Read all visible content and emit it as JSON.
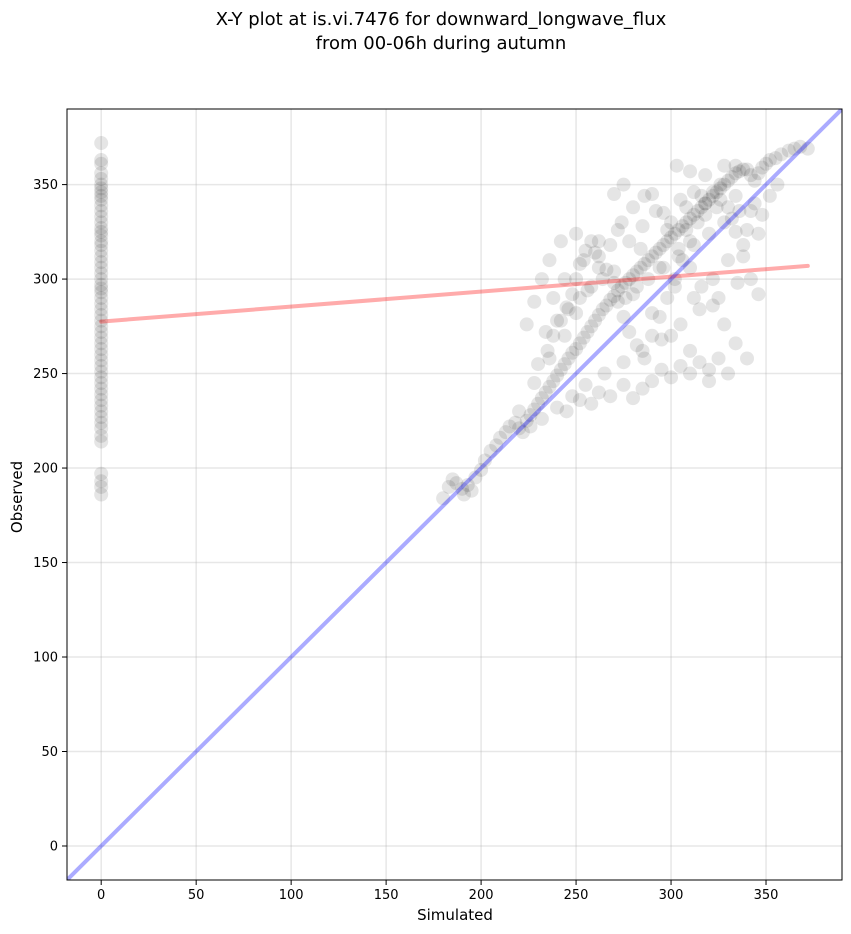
{
  "chart_data": {
    "type": "scatter",
    "title_line1": "X-Y plot at is.vi.7476 for downward_longwave_flux",
    "title_line2": "from 00-06h during autumn",
    "xlabel": "Simulated",
    "ylabel": "Observed",
    "xlim": [
      -18,
      390
    ],
    "ylim": [
      -18,
      390
    ],
    "xticks": [
      0,
      50,
      100,
      150,
      200,
      250,
      300,
      350
    ],
    "yticks": [
      0,
      50,
      100,
      150,
      200,
      250,
      300,
      350
    ],
    "grid": true,
    "legend": "none",
    "series": [
      {
        "marker_color": "#000000",
        "marker_opacity": 0.1,
        "points": [
          [
            0,
            372
          ],
          [
            0,
            363
          ],
          [
            0,
            361
          ],
          [
            0,
            356
          ],
          [
            0,
            353
          ],
          [
            0,
            350
          ],
          [
            0,
            348
          ],
          [
            0,
            346
          ],
          [
            0,
            344
          ],
          [
            0,
            342
          ],
          [
            0,
            339
          ],
          [
            0,
            336
          ],
          [
            0,
            333
          ],
          [
            0,
            330
          ],
          [
            0,
            327
          ],
          [
            0,
            325
          ],
          [
            0,
            323
          ],
          [
            0,
            320
          ],
          [
            0,
            318
          ],
          [
            0,
            315
          ],
          [
            0,
            312
          ],
          [
            0,
            309
          ],
          [
            0,
            306
          ],
          [
            0,
            303
          ],
          [
            0,
            300
          ],
          [
            0,
            297
          ],
          [
            0,
            295
          ],
          [
            0,
            293
          ],
          [
            0,
            290
          ],
          [
            0,
            287
          ],
          [
            0,
            284
          ],
          [
            0,
            281
          ],
          [
            0,
            278
          ],
          [
            0,
            275
          ],
          [
            0,
            272
          ],
          [
            0,
            269
          ],
          [
            0,
            266
          ],
          [
            0,
            263
          ],
          [
            0,
            260
          ],
          [
            0,
            257
          ],
          [
            0,
            254
          ],
          [
            0,
            251
          ],
          [
            0,
            248
          ],
          [
            0,
            245
          ],
          [
            0,
            242
          ],
          [
            0,
            239
          ],
          [
            0,
            236
          ],
          [
            0,
            233
          ],
          [
            0,
            230
          ],
          [
            0,
            227
          ],
          [
            0,
            224
          ],
          [
            0,
            221
          ],
          [
            0,
            217
          ],
          [
            0,
            214
          ],
          [
            0,
            197
          ],
          [
            0,
            193
          ],
          [
            0,
            190
          ],
          [
            0,
            186
          ],
          [
            180,
            184
          ],
          [
            183,
            190
          ],
          [
            185,
            194
          ],
          [
            187,
            192
          ],
          [
            190,
            189
          ],
          [
            191,
            186
          ],
          [
            193,
            191
          ],
          [
            195,
            188
          ],
          [
            197,
            195
          ],
          [
            200,
            199
          ],
          [
            202,
            204
          ],
          [
            205,
            209
          ],
          [
            208,
            212
          ],
          [
            210,
            216
          ],
          [
            213,
            219
          ],
          [
            215,
            222
          ],
          [
            218,
            224
          ],
          [
            220,
            221
          ],
          [
            222,
            219
          ],
          [
            224,
            225
          ],
          [
            226,
            228
          ],
          [
            228,
            231
          ],
          [
            230,
            234
          ],
          [
            232,
            237
          ],
          [
            234,
            240
          ],
          [
            236,
            243
          ],
          [
            238,
            246
          ],
          [
            240,
            249
          ],
          [
            242,
            252
          ],
          [
            244,
            255
          ],
          [
            246,
            258
          ],
          [
            248,
            261
          ],
          [
            250,
            263
          ],
          [
            252,
            266
          ],
          [
            254,
            269
          ],
          [
            256,
            272
          ],
          [
            258,
            275
          ],
          [
            260,
            278
          ],
          [
            262,
            281
          ],
          [
            264,
            284
          ],
          [
            266,
            286
          ],
          [
            268,
            289
          ],
          [
            270,
            291
          ],
          [
            272,
            294
          ],
          [
            274,
            296
          ],
          [
            276,
            298
          ],
          [
            278,
            300
          ],
          [
            280,
            302
          ],
          [
            282,
            304
          ],
          [
            284,
            306
          ],
          [
            286,
            308
          ],
          [
            288,
            310
          ],
          [
            290,
            312
          ],
          [
            292,
            314
          ],
          [
            294,
            316
          ],
          [
            296,
            318
          ],
          [
            298,
            320
          ],
          [
            300,
            322
          ],
          [
            302,
            324
          ],
          [
            304,
            326
          ],
          [
            306,
            328
          ],
          [
            308,
            330
          ],
          [
            310,
            332
          ],
          [
            312,
            334
          ],
          [
            314,
            336
          ],
          [
            316,
            338
          ],
          [
            318,
            340
          ],
          [
            320,
            342
          ],
          [
            322,
            344
          ],
          [
            324,
            346
          ],
          [
            326,
            348
          ],
          [
            328,
            350
          ],
          [
            330,
            352
          ],
          [
            332,
            354
          ],
          [
            334,
            356
          ],
          [
            336,
            357
          ],
          [
            338,
            358
          ],
          [
            340,
            358
          ],
          [
            342,
            355
          ],
          [
            344,
            352
          ],
          [
            346,
            356
          ],
          [
            348,
            359
          ],
          [
            350,
            361
          ],
          [
            352,
            363
          ],
          [
            355,
            364
          ],
          [
            358,
            366
          ],
          [
            362,
            368
          ],
          [
            365,
            369
          ],
          [
            368,
            370
          ],
          [
            372,
            369
          ],
          [
            245,
            230
          ],
          [
            252,
            236
          ],
          [
            258,
            234
          ],
          [
            262,
            240
          ],
          [
            268,
            238
          ],
          [
            275,
            244
          ],
          [
            280,
            237
          ],
          [
            285,
            242
          ],
          [
            290,
            246
          ],
          [
            295,
            252
          ],
          [
            300,
            248
          ],
          [
            305,
            254
          ],
          [
            310,
            250
          ],
          [
            315,
            256
          ],
          [
            320,
            252
          ],
          [
            325,
            258
          ],
          [
            230,
            255
          ],
          [
            235,
            262
          ],
          [
            238,
            270
          ],
          [
            242,
            278
          ],
          [
            245,
            285
          ],
          [
            248,
            292
          ],
          [
            250,
            300
          ],
          [
            252,
            308
          ],
          [
            255,
            315
          ],
          [
            258,
            320
          ],
          [
            262,
            312
          ],
          [
            266,
            305
          ],
          [
            270,
            298
          ],
          [
            272,
            288
          ],
          [
            275,
            280
          ],
          [
            278,
            272
          ],
          [
            282,
            265
          ],
          [
            286,
            258
          ],
          [
            290,
            270
          ],
          [
            294,
            280
          ],
          [
            298,
            290
          ],
          [
            302,
            300
          ],
          [
            306,
            310
          ],
          [
            310,
            320
          ],
          [
            314,
            330
          ],
          [
            318,
            340
          ],
          [
            322,
            346
          ],
          [
            326,
            350
          ],
          [
            330,
            338
          ],
          [
            334,
            325
          ],
          [
            338,
            312
          ],
          [
            342,
            300
          ],
          [
            346,
            292
          ],
          [
            335,
            298
          ],
          [
            325,
            290
          ],
          [
            315,
            284
          ],
          [
            305,
            276
          ],
          [
            295,
            268
          ],
          [
            285,
            262
          ],
          [
            275,
            256
          ],
          [
            265,
            250
          ],
          [
            255,
            244
          ],
          [
            248,
            238
          ],
          [
            240,
            232
          ],
          [
            232,
            226
          ],
          [
            226,
            222
          ],
          [
            220,
            230
          ],
          [
            228,
            245
          ],
          [
            236,
            258
          ],
          [
            244,
            270
          ],
          [
            250,
            282
          ],
          [
            256,
            294
          ],
          [
            262,
            306
          ],
          [
            268,
            318
          ],
          [
            274,
            330
          ],
          [
            280,
            338
          ],
          [
            286,
            344
          ],
          [
            292,
            336
          ],
          [
            298,
            326
          ],
          [
            304,
            316
          ],
          [
            310,
            306
          ],
          [
            316,
            296
          ],
          [
            322,
            286
          ],
          [
            328,
            276
          ],
          [
            334,
            266
          ],
          [
            340,
            258
          ],
          [
            330,
            250
          ],
          [
            320,
            246
          ],
          [
            310,
            262
          ],
          [
            300,
            270
          ],
          [
            290,
            282
          ],
          [
            280,
            292
          ],
          [
            270,
            304
          ],
          [
            260,
            314
          ],
          [
            250,
            324
          ],
          [
            242,
            320
          ],
          [
            236,
            310
          ],
          [
            232,
            300
          ],
          [
            228,
            288
          ],
          [
            224,
            276
          ],
          [
            270,
            345
          ],
          [
            275,
            350
          ],
          [
            290,
            345
          ],
          [
            303,
            360
          ],
          [
            310,
            357
          ],
          [
            318,
            355
          ],
          [
            328,
            360
          ],
          [
            334,
            360
          ],
          [
            296,
            335
          ],
          [
            305,
            342
          ],
          [
            312,
            346
          ],
          [
            285,
            328
          ],
          [
            278,
            320
          ],
          [
            300,
            330
          ],
          [
            308,
            338
          ],
          [
            316,
            344
          ],
          [
            324,
            338
          ],
          [
            332,
            332
          ],
          [
            340,
            326
          ],
          [
            348,
            334
          ],
          [
            352,
            344
          ],
          [
            356,
            350
          ],
          [
            344,
            340
          ],
          [
            336,
            336
          ],
          [
            328,
            330
          ],
          [
            320,
            324
          ],
          [
            312,
            318
          ],
          [
            304,
            312
          ],
          [
            296,
            306
          ],
          [
            288,
            300
          ],
          [
            282,
            296
          ],
          [
            276,
            290
          ],
          [
            264,
            300
          ],
          [
            258,
            296
          ],
          [
            252,
            290
          ],
          [
            246,
            284
          ],
          [
            240,
            278
          ],
          [
            234,
            272
          ],
          [
            238,
            290
          ],
          [
            244,
            300
          ],
          [
            254,
            310
          ],
          [
            262,
            320
          ],
          [
            272,
            326
          ],
          [
            284,
            316
          ],
          [
            294,
            306
          ],
          [
            302,
            296
          ],
          [
            312,
            290
          ],
          [
            322,
            300
          ],
          [
            330,
            310
          ],
          [
            338,
            318
          ],
          [
            346,
            324
          ],
          [
            342,
            336
          ],
          [
            334,
            344
          ],
          [
            326,
            342
          ],
          [
            318,
            334
          ],
          [
            308,
            326
          ]
        ]
      }
    ],
    "lines": [
      {
        "name": "",
        "color": "#ff0000",
        "opacity": 0.33,
        "x": [
          0,
          372
        ],
        "y": [
          277.5,
          307
        ]
      },
      {
        "name": "",
        "color": "#0000ff",
        "opacity": 0.33,
        "x": [
          -18,
          390
        ],
        "y": [
          -18,
          390
        ]
      }
    ]
  }
}
